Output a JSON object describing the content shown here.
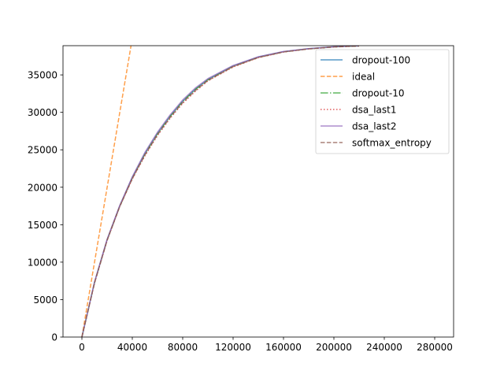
{
  "chart_data": {
    "type": "line",
    "title": "",
    "xlabel": "",
    "ylabel": "",
    "xlim": [
      -15000,
      295000
    ],
    "ylim": [
      0,
      38900
    ],
    "xticks": [
      0,
      40000,
      80000,
      120000,
      160000,
      200000,
      240000,
      280000
    ],
    "xtick_labels": [
      "0",
      "40000",
      "80000",
      "120000",
      "160000",
      "200000",
      "240000",
      "280000"
    ],
    "yticks": [
      0,
      5000,
      10000,
      15000,
      20000,
      25000,
      30000,
      35000
    ],
    "ytick_labels": [
      "0",
      "5000",
      "10000",
      "15000",
      "20000",
      "25000",
      "30000",
      "35000"
    ],
    "grid": false,
    "legend_position": "top-right",
    "series": [
      {
        "name": "dropout-100",
        "color": "#1f77b4",
        "style": "solid",
        "x": [
          0,
          10000,
          20000,
          30000,
          40000,
          50000,
          60000,
          70000,
          80000,
          90000,
          100000,
          120000,
          140000,
          160000,
          180000,
          200000,
          210000,
          220000
        ],
        "y": [
          0,
          7300,
          13000,
          17500,
          21300,
          24500,
          27200,
          29500,
          31500,
          33100,
          34400,
          36200,
          37400,
          38100,
          38500,
          38750,
          38820,
          38880
        ]
      },
      {
        "name": "ideal",
        "color": "#ff7f0e",
        "style": "dashed",
        "x": [
          0,
          39000
        ],
        "y": [
          0,
          38900
        ]
      },
      {
        "name": "dropout-10",
        "color": "#2ca02c",
        "style": "dashdot",
        "x": [
          0,
          10000,
          20000,
          30000,
          40000,
          50000,
          60000,
          70000,
          80000,
          90000,
          100000,
          120000,
          140000,
          160000,
          180000,
          200000,
          210000,
          220000
        ],
        "y": [
          0,
          7250,
          12950,
          17450,
          21250,
          24450,
          27150,
          29450,
          31450,
          33050,
          34350,
          36150,
          37350,
          38080,
          38480,
          38740,
          38810,
          38870
        ]
      },
      {
        "name": "dsa_last1",
        "color": "#d62728",
        "style": "dotted",
        "x": [
          0,
          10000,
          20000,
          30000,
          40000,
          50000,
          60000,
          70000,
          80000,
          90000,
          100000,
          120000,
          140000,
          160000,
          180000,
          200000,
          210000,
          220000
        ],
        "y": [
          0,
          7200,
          12900,
          17400,
          21100,
          24200,
          26900,
          29200,
          31200,
          32800,
          34200,
          36050,
          37300,
          38050,
          38470,
          38730,
          38800,
          38860
        ]
      },
      {
        "name": "dsa_last2",
        "color": "#9467bd",
        "style": "solid",
        "x": [
          0,
          10000,
          20000,
          30000,
          40000,
          50000,
          60000,
          70000,
          80000,
          90000,
          100000,
          120000,
          140000,
          160000,
          180000,
          200000,
          210000,
          220000
        ],
        "y": [
          0,
          7350,
          13050,
          17550,
          21400,
          24650,
          27350,
          29650,
          31650,
          33250,
          34500,
          36250,
          37420,
          38120,
          38510,
          38760,
          38830,
          38890
        ]
      },
      {
        "name": "softmax_entropy",
        "color": "#8c564b",
        "style": "dashed",
        "x": [
          0,
          10000,
          20000,
          30000,
          40000,
          50000,
          60000,
          70000,
          80000,
          90000,
          100000,
          120000,
          140000,
          160000,
          180000,
          200000,
          210000,
          220000
        ],
        "y": [
          0,
          7220,
          12920,
          17420,
          21150,
          24300,
          27000,
          29300,
          31300,
          32900,
          34250,
          36100,
          37320,
          38060,
          38470,
          38730,
          38800,
          38860
        ]
      }
    ]
  }
}
